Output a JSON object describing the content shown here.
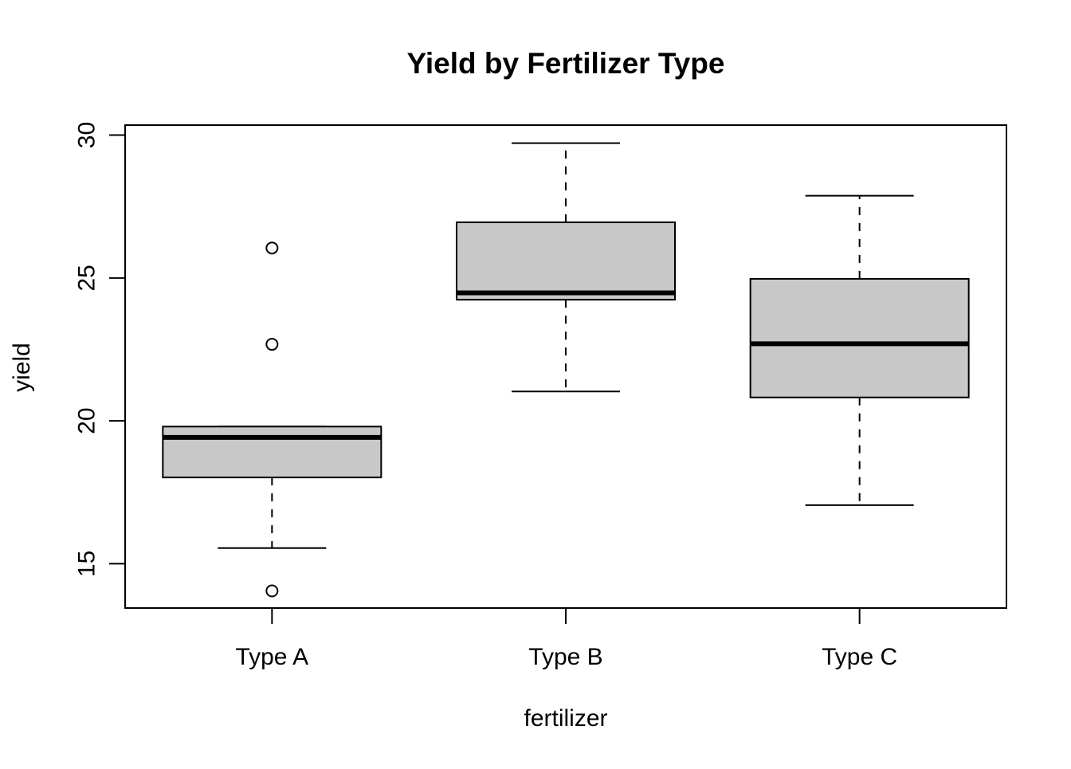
{
  "chart_data": {
    "type": "boxplot",
    "title": "Yield by Fertilizer Type",
    "xlabel": "fertilizer",
    "ylabel": "yield",
    "categories": [
      "Type A",
      "Type B",
      "Type C"
    ],
    "y_ticks": [
      15,
      20,
      25,
      30
    ],
    "y_tick_labels": [
      "15",
      "20",
      "25",
      "30"
    ],
    "ylim": [
      13.45,
      30.35
    ],
    "grid": false,
    "legend": "none",
    "box_fill_color": "#c8c8c8",
    "line_color": "#000000",
    "boxes": [
      {
        "category": "Type A",
        "whisker_low": 15.55,
        "q1": 18.02,
        "median": 19.42,
        "q3": 19.8,
        "whisker_high": 19.8,
        "outliers": [
          26.05,
          22.68,
          14.05
        ]
      },
      {
        "category": "Type B",
        "whisker_low": 21.03,
        "q1": 24.24,
        "median": 24.48,
        "q3": 26.95,
        "whisker_high": 29.72,
        "outliers": []
      },
      {
        "category": "Type C",
        "whisker_low": 17.05,
        "q1": 20.82,
        "median": 22.7,
        "q3": 24.97,
        "whisker_high": 27.88,
        "outliers": []
      }
    ]
  }
}
